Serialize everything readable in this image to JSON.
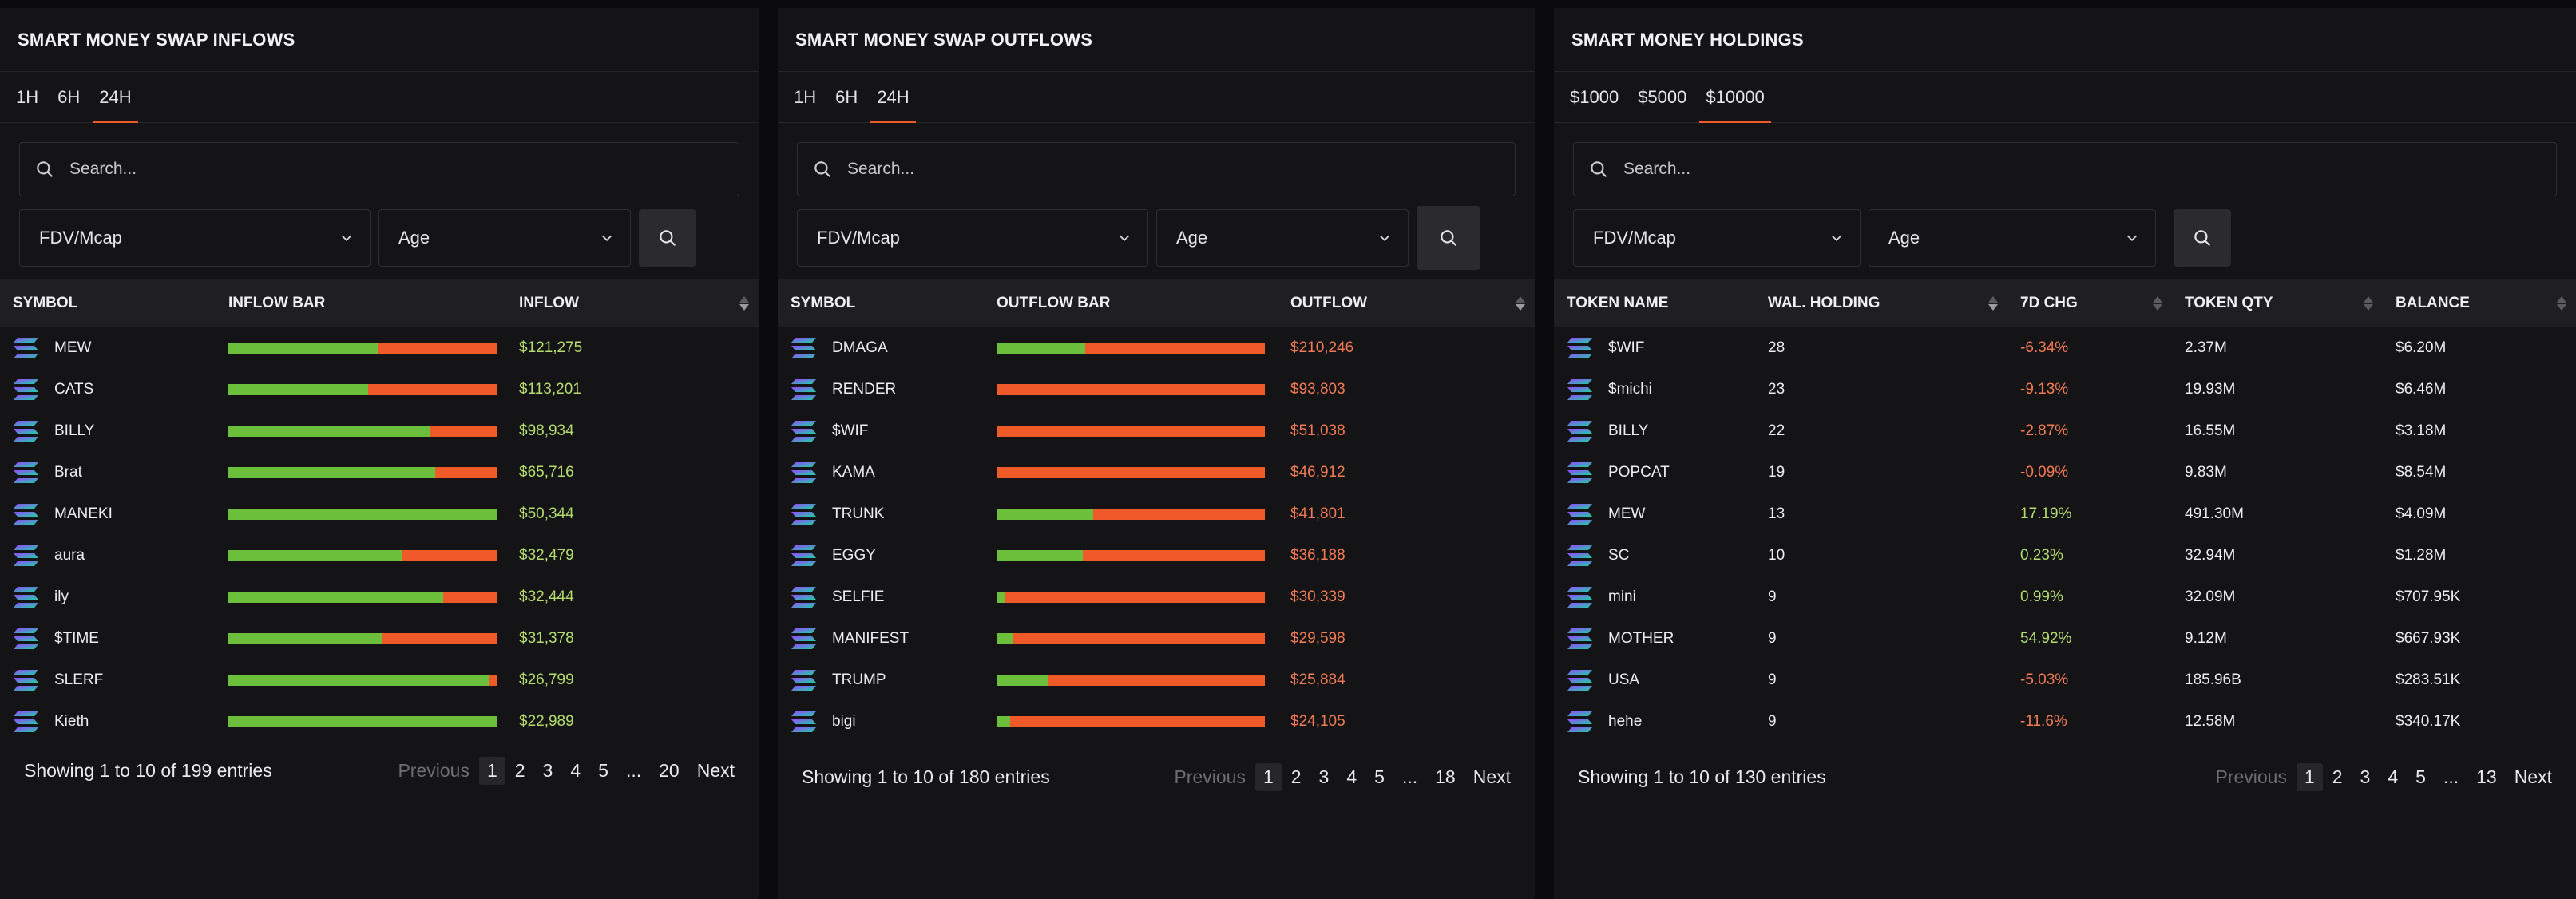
{
  "inflows": {
    "title": "SMART MONEY SWAP INFLOWS",
    "tabs": [
      "1H",
      "6H",
      "24H"
    ],
    "active_tab": 2,
    "search_placeholder": "Search...",
    "filter1": "FDV/Mcap",
    "filter2": "Age",
    "headers": [
      "SYMBOL",
      "INFLOW BAR",
      "INFLOW"
    ],
    "rows": [
      {
        "symbol": "MEW",
        "green_fraction": 0.56,
        "value": "$121,275"
      },
      {
        "symbol": "CATS",
        "green_fraction": 0.52,
        "value": "$113,201"
      },
      {
        "symbol": "BILLY",
        "green_fraction": 0.75,
        "value": "$98,934"
      },
      {
        "symbol": "Brat",
        "green_fraction": 0.77,
        "value": "$65,716"
      },
      {
        "symbol": "MANEKI",
        "green_fraction": 1.0,
        "value": "$50,344"
      },
      {
        "symbol": "aura",
        "green_fraction": 0.65,
        "value": "$32,479"
      },
      {
        "symbol": "ily",
        "green_fraction": 0.8,
        "value": "$32,444"
      },
      {
        "symbol": "$TIME",
        "green_fraction": 0.57,
        "value": "$31,378"
      },
      {
        "symbol": "SLERF",
        "green_fraction": 0.97,
        "value": "$26,799"
      },
      {
        "symbol": "Kieth",
        "green_fraction": 1.0,
        "value": "$22,989"
      }
    ],
    "footer": "Showing 1 to 10 of 199 entries",
    "pager": [
      "Previous",
      "1",
      "2",
      "3",
      "4",
      "5",
      "...",
      "20",
      "Next"
    ]
  },
  "outflows": {
    "title": "SMART MONEY SWAP OUTFLOWS",
    "tabs": [
      "1H",
      "6H",
      "24H"
    ],
    "active_tab": 2,
    "search_placeholder": "Search...",
    "filter1": "FDV/Mcap",
    "filter2": "Age",
    "headers": [
      "SYMBOL",
      "OUTFLOW BAR",
      "OUTFLOW"
    ],
    "rows": [
      {
        "symbol": "DMAGA",
        "green_fraction": 0.33,
        "value": "$210,246"
      },
      {
        "symbol": "RENDER",
        "green_fraction": 0.0,
        "value": "$93,803"
      },
      {
        "symbol": "$WIF",
        "green_fraction": 0.0,
        "value": "$51,038"
      },
      {
        "symbol": "KAMA",
        "green_fraction": 0.0,
        "value": "$46,912"
      },
      {
        "symbol": "TRUNK",
        "green_fraction": 0.36,
        "value": "$41,801"
      },
      {
        "symbol": "EGGY",
        "green_fraction": 0.32,
        "value": "$36,188"
      },
      {
        "symbol": "SELFIE",
        "green_fraction": 0.03,
        "value": "$30,339"
      },
      {
        "symbol": "MANIFEST",
        "green_fraction": 0.06,
        "value": "$29,598"
      },
      {
        "symbol": "TRUMP",
        "green_fraction": 0.19,
        "value": "$25,884"
      },
      {
        "symbol": "bigi",
        "green_fraction": 0.05,
        "value": "$24,105"
      }
    ],
    "footer": "Showing 1 to 10 of 180 entries",
    "pager": [
      "Previous",
      "1",
      "2",
      "3",
      "4",
      "5",
      "...",
      "18",
      "Next"
    ]
  },
  "holdings": {
    "title": "SMART MONEY HOLDINGS",
    "tabs": [
      "$1000",
      "$5000",
      "$10000"
    ],
    "active_tab": 2,
    "search_placeholder": "Search...",
    "filter1": "FDV/Mcap",
    "filter2": "Age",
    "headers": [
      "TOKEN NAME",
      "WAL. HOLDING",
      "7D CHG",
      "TOKEN QTY",
      "BALANCE"
    ],
    "rows": [
      {
        "name": "$WIF",
        "holding": "28",
        "chg": "-6.34%",
        "qty": "2.37M",
        "balance": "$6.20M"
      },
      {
        "name": "$michi",
        "holding": "23",
        "chg": "-9.13%",
        "qty": "19.93M",
        "balance": "$6.46M"
      },
      {
        "name": "BILLY",
        "holding": "22",
        "chg": "-2.87%",
        "qty": "16.55M",
        "balance": "$3.18M"
      },
      {
        "name": "POPCAT",
        "holding": "19",
        "chg": "-0.09%",
        "qty": "9.83M",
        "balance": "$8.54M"
      },
      {
        "name": "MEW",
        "holding": "13",
        "chg": "17.19%",
        "qty": "491.30M",
        "balance": "$4.09M"
      },
      {
        "name": "SC",
        "holding": "10",
        "chg": "0.23%",
        "qty": "32.94M",
        "balance": "$1.28M"
      },
      {
        "name": "mini",
        "holding": "9",
        "chg": "0.99%",
        "qty": "32.09M",
        "balance": "$707.95K"
      },
      {
        "name": "MOTHER",
        "holding": "9",
        "chg": "54.92%",
        "qty": "9.12M",
        "balance": "$667.93K"
      },
      {
        "name": "USA",
        "holding": "9",
        "chg": "-5.03%",
        "qty": "185.96B",
        "balance": "$283.51K"
      },
      {
        "name": "hehe",
        "holding": "9",
        "chg": "-11.6%",
        "qty": "12.58M",
        "balance": "$340.17K"
      }
    ],
    "footer": "Showing 1 to 10 of 130 entries",
    "pager": [
      "Previous",
      "1",
      "2",
      "3",
      "4",
      "5",
      "...",
      "13",
      "Next"
    ]
  },
  "colors": {
    "accent": "#f05a28",
    "bar_green": "#6bbf3a",
    "bar_red": "#f05a28",
    "value_green": "#b6dd6c",
    "value_red": "#f37a52",
    "panel_bg": "#141417",
    "page_bg": "#0b0b0d"
  },
  "icons": {
    "token": "solana-logo-icon",
    "search": "search-icon",
    "dropdown": "chevron-down-icon",
    "sort": "sort-icon"
  }
}
